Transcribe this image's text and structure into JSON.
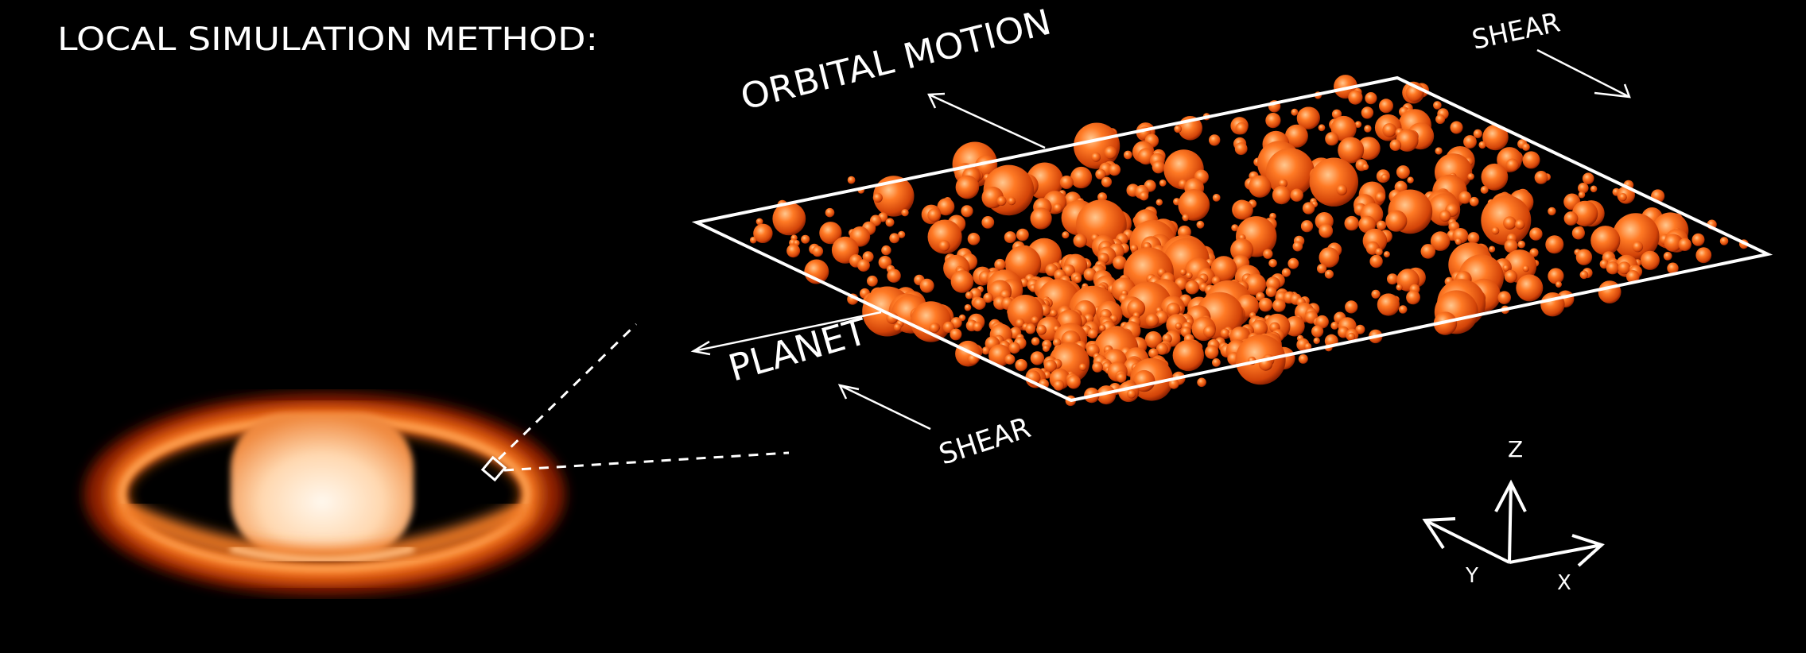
{
  "title": "LOCAL SIMULATION METHOD:",
  "labels": {
    "orbital_motion": "ORBITAL MOTION",
    "shear_top": "SHEAR",
    "planet": "PLANET",
    "shear_bottom": "SHEAR"
  },
  "axes": {
    "z": "Z",
    "y": "Y",
    "x": "X"
  },
  "colors": {
    "background": "#000000",
    "annotation": "#ffffff",
    "particle_light": "#ffb070",
    "particle_mid": "#f05a10",
    "particle_dark": "#7a1800",
    "saturn_glow": "#e05010",
    "saturn_body": "#fff0dc"
  }
}
